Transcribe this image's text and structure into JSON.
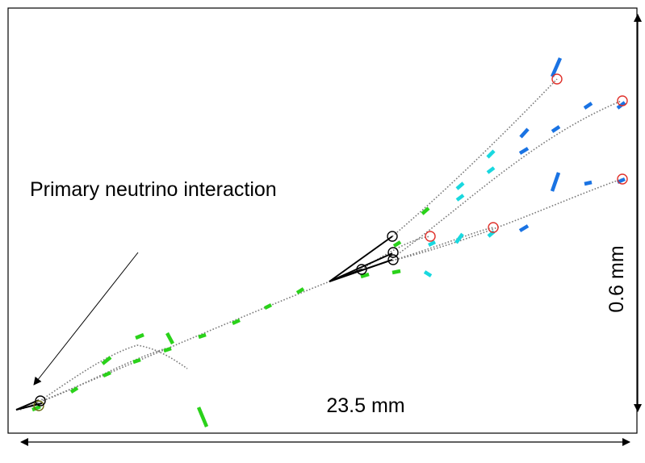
{
  "labels": {
    "annotation": "Primary neutrino interaction",
    "horizontal_scale": "23.5 mm",
    "vertical_scale": "0.6 mm"
  },
  "colors": {
    "hit_green": "#2ad21a",
    "hit_cyan": "#19d8df",
    "hit_blue": "#1a73e3",
    "vertex_black": "#000000",
    "vertex_red": "#e0302a"
  }
}
